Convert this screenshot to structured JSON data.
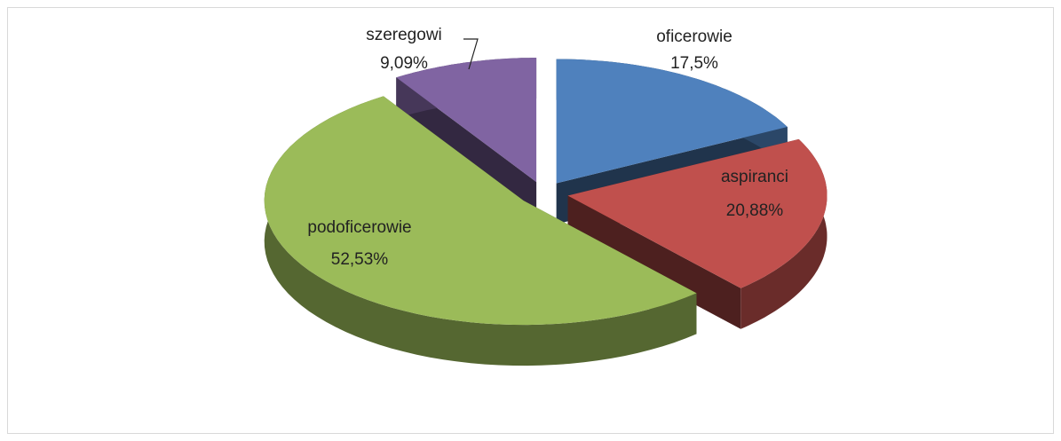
{
  "chart_data": {
    "type": "pie",
    "categories": [
      "oficerowie",
      "aspiranci",
      "podoficerowie",
      "szeregowi"
    ],
    "values": [
      17.5,
      20.88,
      52.53,
      9.09
    ],
    "value_labels": [
      "17,5%",
      "20,88%",
      "52,53%",
      "9,09%"
    ],
    "colors": [
      "#4f81bd",
      "#c0504d",
      "#9bbb59",
      "#8064a2"
    ]
  }
}
